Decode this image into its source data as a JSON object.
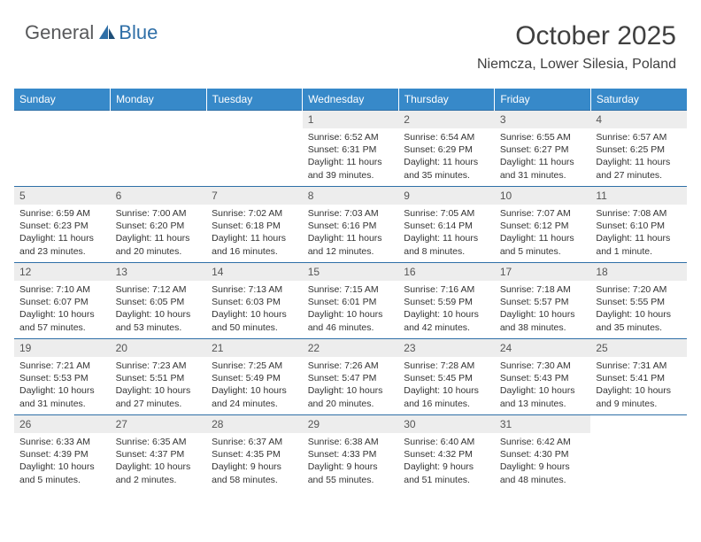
{
  "logo": {
    "text1": "General",
    "text2": "Blue"
  },
  "title": "October 2025",
  "location": "Niemcza, Lower Silesia, Poland",
  "colors": {
    "header_bg": "#3789c9",
    "header_text": "#ffffff",
    "daynum_bg": "#ededed",
    "border": "#2f6fa7",
    "logo_gray": "#58595b",
    "logo_blue": "#2f6fa7",
    "title_color": "#404040"
  },
  "typography": {
    "title_fontsize": 30,
    "location_fontsize": 16,
    "dayheader_fontsize": 12,
    "daynum_fontsize": 12,
    "body_fontsize": 10.5
  },
  "day_headers": [
    "Sunday",
    "Monday",
    "Tuesday",
    "Wednesday",
    "Thursday",
    "Friday",
    "Saturday"
  ],
  "weeks": [
    [
      {
        "n": "",
        "sunrise": "",
        "sunset": "",
        "daylight": ""
      },
      {
        "n": "",
        "sunrise": "",
        "sunset": "",
        "daylight": ""
      },
      {
        "n": "",
        "sunrise": "",
        "sunset": "",
        "daylight": ""
      },
      {
        "n": "1",
        "sunrise": "Sunrise: 6:52 AM",
        "sunset": "Sunset: 6:31 PM",
        "daylight": "Daylight: 11 hours and 39 minutes."
      },
      {
        "n": "2",
        "sunrise": "Sunrise: 6:54 AM",
        "sunset": "Sunset: 6:29 PM",
        "daylight": "Daylight: 11 hours and 35 minutes."
      },
      {
        "n": "3",
        "sunrise": "Sunrise: 6:55 AM",
        "sunset": "Sunset: 6:27 PM",
        "daylight": "Daylight: 11 hours and 31 minutes."
      },
      {
        "n": "4",
        "sunrise": "Sunrise: 6:57 AM",
        "sunset": "Sunset: 6:25 PM",
        "daylight": "Daylight: 11 hours and 27 minutes."
      }
    ],
    [
      {
        "n": "5",
        "sunrise": "Sunrise: 6:59 AM",
        "sunset": "Sunset: 6:23 PM",
        "daylight": "Daylight: 11 hours and 23 minutes."
      },
      {
        "n": "6",
        "sunrise": "Sunrise: 7:00 AM",
        "sunset": "Sunset: 6:20 PM",
        "daylight": "Daylight: 11 hours and 20 minutes."
      },
      {
        "n": "7",
        "sunrise": "Sunrise: 7:02 AM",
        "sunset": "Sunset: 6:18 PM",
        "daylight": "Daylight: 11 hours and 16 minutes."
      },
      {
        "n": "8",
        "sunrise": "Sunrise: 7:03 AM",
        "sunset": "Sunset: 6:16 PM",
        "daylight": "Daylight: 11 hours and 12 minutes."
      },
      {
        "n": "9",
        "sunrise": "Sunrise: 7:05 AM",
        "sunset": "Sunset: 6:14 PM",
        "daylight": "Daylight: 11 hours and 8 minutes."
      },
      {
        "n": "10",
        "sunrise": "Sunrise: 7:07 AM",
        "sunset": "Sunset: 6:12 PM",
        "daylight": "Daylight: 11 hours and 5 minutes."
      },
      {
        "n": "11",
        "sunrise": "Sunrise: 7:08 AM",
        "sunset": "Sunset: 6:10 PM",
        "daylight": "Daylight: 11 hours and 1 minute."
      }
    ],
    [
      {
        "n": "12",
        "sunrise": "Sunrise: 7:10 AM",
        "sunset": "Sunset: 6:07 PM",
        "daylight": "Daylight: 10 hours and 57 minutes."
      },
      {
        "n": "13",
        "sunrise": "Sunrise: 7:12 AM",
        "sunset": "Sunset: 6:05 PM",
        "daylight": "Daylight: 10 hours and 53 minutes."
      },
      {
        "n": "14",
        "sunrise": "Sunrise: 7:13 AM",
        "sunset": "Sunset: 6:03 PM",
        "daylight": "Daylight: 10 hours and 50 minutes."
      },
      {
        "n": "15",
        "sunrise": "Sunrise: 7:15 AM",
        "sunset": "Sunset: 6:01 PM",
        "daylight": "Daylight: 10 hours and 46 minutes."
      },
      {
        "n": "16",
        "sunrise": "Sunrise: 7:16 AM",
        "sunset": "Sunset: 5:59 PM",
        "daylight": "Daylight: 10 hours and 42 minutes."
      },
      {
        "n": "17",
        "sunrise": "Sunrise: 7:18 AM",
        "sunset": "Sunset: 5:57 PM",
        "daylight": "Daylight: 10 hours and 38 minutes."
      },
      {
        "n": "18",
        "sunrise": "Sunrise: 7:20 AM",
        "sunset": "Sunset: 5:55 PM",
        "daylight": "Daylight: 10 hours and 35 minutes."
      }
    ],
    [
      {
        "n": "19",
        "sunrise": "Sunrise: 7:21 AM",
        "sunset": "Sunset: 5:53 PM",
        "daylight": "Daylight: 10 hours and 31 minutes."
      },
      {
        "n": "20",
        "sunrise": "Sunrise: 7:23 AM",
        "sunset": "Sunset: 5:51 PM",
        "daylight": "Daylight: 10 hours and 27 minutes."
      },
      {
        "n": "21",
        "sunrise": "Sunrise: 7:25 AM",
        "sunset": "Sunset: 5:49 PM",
        "daylight": "Daylight: 10 hours and 24 minutes."
      },
      {
        "n": "22",
        "sunrise": "Sunrise: 7:26 AM",
        "sunset": "Sunset: 5:47 PM",
        "daylight": "Daylight: 10 hours and 20 minutes."
      },
      {
        "n": "23",
        "sunrise": "Sunrise: 7:28 AM",
        "sunset": "Sunset: 5:45 PM",
        "daylight": "Daylight: 10 hours and 16 minutes."
      },
      {
        "n": "24",
        "sunrise": "Sunrise: 7:30 AM",
        "sunset": "Sunset: 5:43 PM",
        "daylight": "Daylight: 10 hours and 13 minutes."
      },
      {
        "n": "25",
        "sunrise": "Sunrise: 7:31 AM",
        "sunset": "Sunset: 5:41 PM",
        "daylight": "Daylight: 10 hours and 9 minutes."
      }
    ],
    [
      {
        "n": "26",
        "sunrise": "Sunrise: 6:33 AM",
        "sunset": "Sunset: 4:39 PM",
        "daylight": "Daylight: 10 hours and 5 minutes."
      },
      {
        "n": "27",
        "sunrise": "Sunrise: 6:35 AM",
        "sunset": "Sunset: 4:37 PM",
        "daylight": "Daylight: 10 hours and 2 minutes."
      },
      {
        "n": "28",
        "sunrise": "Sunrise: 6:37 AM",
        "sunset": "Sunset: 4:35 PM",
        "daylight": "Daylight: 9 hours and 58 minutes."
      },
      {
        "n": "29",
        "sunrise": "Sunrise: 6:38 AM",
        "sunset": "Sunset: 4:33 PM",
        "daylight": "Daylight: 9 hours and 55 minutes."
      },
      {
        "n": "30",
        "sunrise": "Sunrise: 6:40 AM",
        "sunset": "Sunset: 4:32 PM",
        "daylight": "Daylight: 9 hours and 51 minutes."
      },
      {
        "n": "31",
        "sunrise": "Sunrise: 6:42 AM",
        "sunset": "Sunset: 4:30 PM",
        "daylight": "Daylight: 9 hours and 48 minutes."
      },
      {
        "n": "",
        "sunrise": "",
        "sunset": "",
        "daylight": ""
      }
    ]
  ]
}
